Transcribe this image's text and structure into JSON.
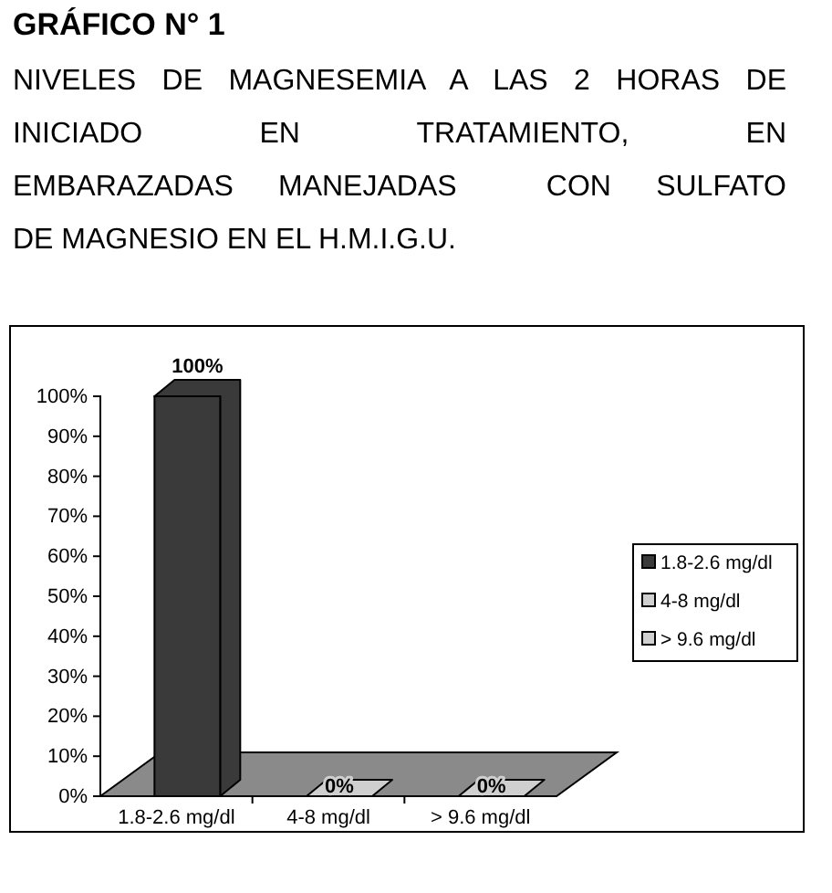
{
  "chart_data": {
    "type": "bar",
    "title": "GRÁFICO N° 1",
    "subtitle": "NIVELES DE MAGNESEMIA A LAS 2 HORAS DE\nINICIADO EN TRATAMIENTO, EN\nEMBARAZADAS MANEJADAS  CON SULFATO\nDE MAGNESIO EN EL H.M.I.G.U.",
    "categories": [
      "1.8-2.6  mg/dl",
      "4-8 mg/dl",
      "> 9.6 mg/dl"
    ],
    "series": [
      {
        "name": "1.8-2.6  mg/dl",
        "color": "#3a3a3a",
        "values": [
          100,
          null,
          null
        ],
        "value_labels": [
          "100%",
          null,
          null
        ]
      },
      {
        "name": "4-8 mg/dl",
        "color": "#d0d0d0",
        "values": [
          null,
          0,
          null
        ],
        "value_labels": [
          null,
          "0%",
          null
        ]
      },
      {
        "name": "> 9.6 mg/dl",
        "color": "#d0d0d0",
        "values": [
          null,
          null,
          0
        ],
        "value_labels": [
          null,
          null,
          "0%"
        ]
      }
    ],
    "ylim": [
      0,
      100
    ],
    "yticks": [
      {
        "value": 0,
        "label": "0%"
      },
      {
        "value": 10,
        "label": "10%"
      },
      {
        "value": 20,
        "label": "20%"
      },
      {
        "value": 30,
        "label": "30%"
      },
      {
        "value": 40,
        "label": "40%"
      },
      {
        "value": 50,
        "label": "50%"
      },
      {
        "value": 60,
        "label": "60%"
      },
      {
        "value": 70,
        "label": "70%"
      },
      {
        "value": 80,
        "label": "80%"
      },
      {
        "value": 90,
        "label": "90%"
      },
      {
        "value": 100,
        "label": "100%"
      }
    ],
    "grid": false,
    "legend": "right"
  }
}
